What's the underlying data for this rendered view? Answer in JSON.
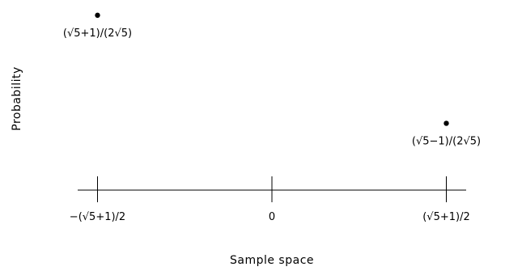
{
  "chart_data": {
    "type": "scatter",
    "xlabel": "Sample space",
    "ylabel": "Probability",
    "x_axis": {
      "ticks": [
        {
          "value": -1.618,
          "label": "−(√5+1)/2"
        },
        {
          "value": 0,
          "label": "0"
        },
        {
          "value": 1.618,
          "label": "(√5+1)/2"
        }
      ],
      "range": [
        -1.75,
        1.9
      ]
    },
    "y_range": [
      0,
      0.76
    ],
    "points": [
      {
        "x": -1.618,
        "y": 0.7236,
        "label": "(√5+1)/(2√5)",
        "label_side": "below"
      },
      {
        "x": 1.618,
        "y": 0.2764,
        "label": "(√5−1)/(2√5)",
        "label_side": "below"
      }
    ],
    "grid": false,
    "legend": "none"
  }
}
